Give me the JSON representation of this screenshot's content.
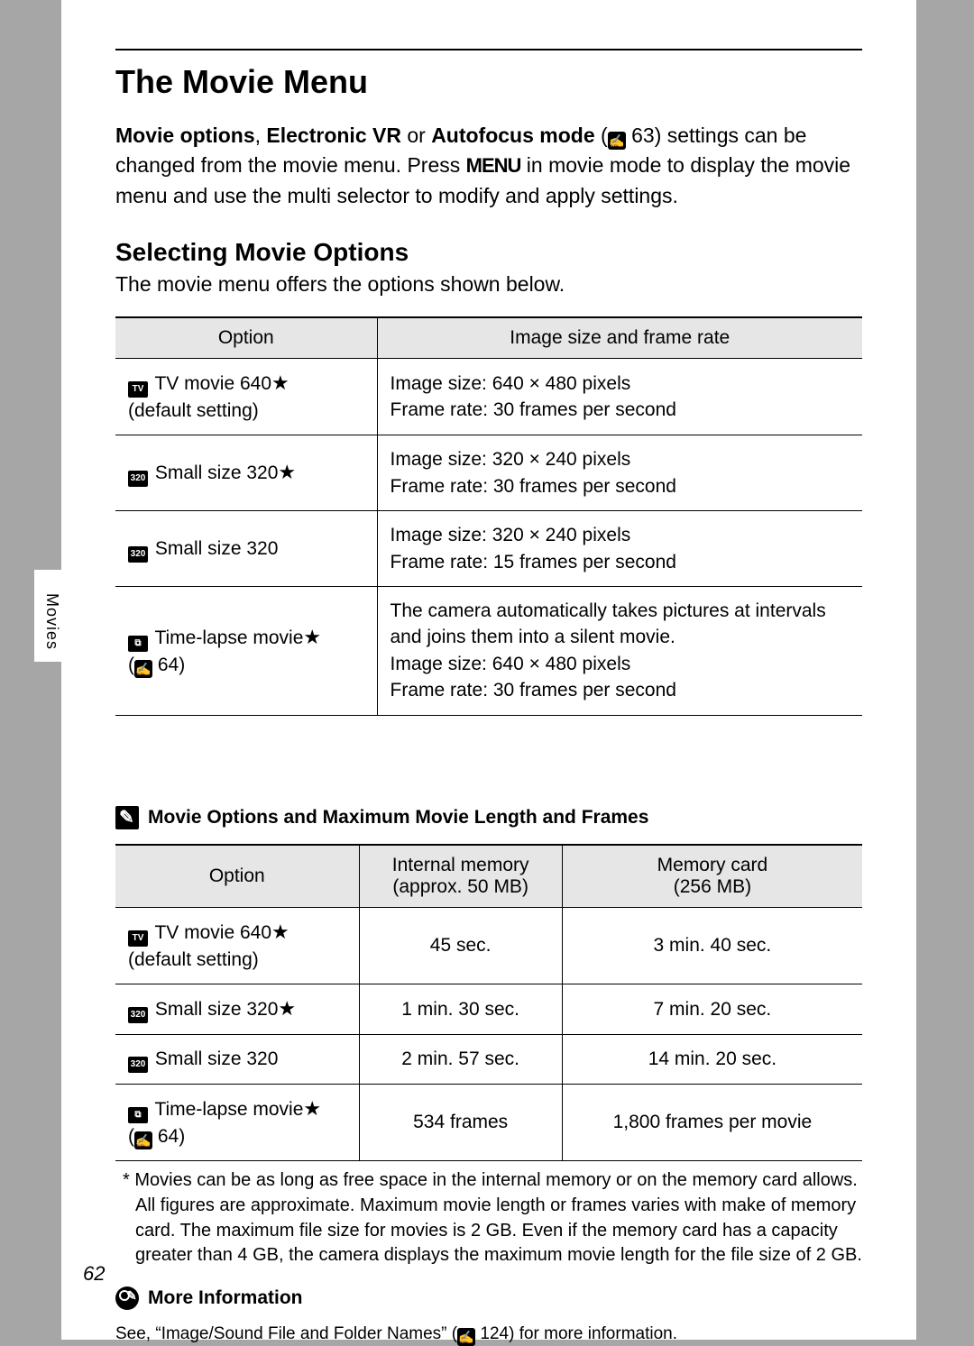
{
  "sidebar_label": "Movies",
  "page_number": "62",
  "title": "The Movie Menu",
  "intro": {
    "part1_bold": "Movie options",
    "comma": ", ",
    "part2_bold": "Electronic VR",
    "or": " or ",
    "part3_bold": "Autofocus mode",
    "after_bold": " (",
    "ref1": "63",
    "after_ref": ") settings can be changed from the movie menu. Press ",
    "menu_text": "MENU",
    "tail": " in movie mode to display the movie menu and use the multi selector to modify and apply settings."
  },
  "section1": {
    "heading": "Selecting Movie Options",
    "sub": "The movie menu offers the options shown below."
  },
  "table1": {
    "header": {
      "c1": "Option",
      "c2": "Image size and frame rate"
    },
    "rows": [
      {
        "icon": "TV",
        "name": " TV movie 640",
        "star": "★",
        "note": "(default setting)",
        "desc_l1": "Image size: 640 × 480 pixels",
        "desc_l2": "Frame rate: 30 frames per second"
      },
      {
        "icon": "320",
        "name": " Small size 320",
        "star": "★",
        "note": "",
        "desc_l1": "Image size: 320 × 240 pixels",
        "desc_l2": "Frame rate: 30 frames per second"
      },
      {
        "icon": "320",
        "name": " Small size 320",
        "star": "",
        "note": "",
        "desc_l1": "Image size: 320 × 240 pixels",
        "desc_l2": "Frame rate: 15 frames per second"
      },
      {
        "icon": "⧉",
        "name": " Time-lapse movie",
        "star": "★",
        "ref": "64",
        "desc_l1": "The camera automatically takes pictures at intervals and joins them into a silent movie.",
        "desc_l2": "Image size: 640 × 480 pixels",
        "desc_l3": "Frame rate: 30 frames per second"
      }
    ]
  },
  "section2": {
    "heading": "Movie Options and Maximum Movie Length and Frames"
  },
  "table2": {
    "header": {
      "c1": "Option",
      "c2a": "Internal memory",
      "c2b": "(approx. 50 MB)",
      "c3a": "Memory card",
      "c3b": "(256 MB)"
    },
    "rows": [
      {
        "icon": "TV",
        "name": " TV movie 640",
        "star": "★",
        "note": "(default setting)",
        "c2": "45 sec.",
        "c3": "3 min. 40 sec."
      },
      {
        "icon": "320",
        "name": " Small size 320",
        "star": "★",
        "note": "",
        "c2": "1 min. 30 sec.",
        "c3": "7 min. 20 sec."
      },
      {
        "icon": "320",
        "name": " Small size 320",
        "star": "",
        "note": "",
        "c2": "2 min. 57 sec.",
        "c3": "14 min. 20 sec."
      },
      {
        "icon": "⧉",
        "name": " Time-lapse movie",
        "star": "★",
        "ref": "64",
        "c2": "534 frames",
        "c3": "1,800 frames per movie"
      }
    ]
  },
  "footnote": "*  Movies can be as long as free space in the internal memory or on the memory card allows. All figures are approximate. Maximum movie length or frames varies with make of memory card. The maximum file size for movies is 2 GB. Even if the memory card has a capacity greater than 4 GB, the camera displays the maximum movie length for the file size of 2 GB.",
  "more_info": {
    "heading": "More Information",
    "text_before": "See, “Image/Sound File and Folder Names” (",
    "ref": "124",
    "text_after": ") for more information."
  }
}
